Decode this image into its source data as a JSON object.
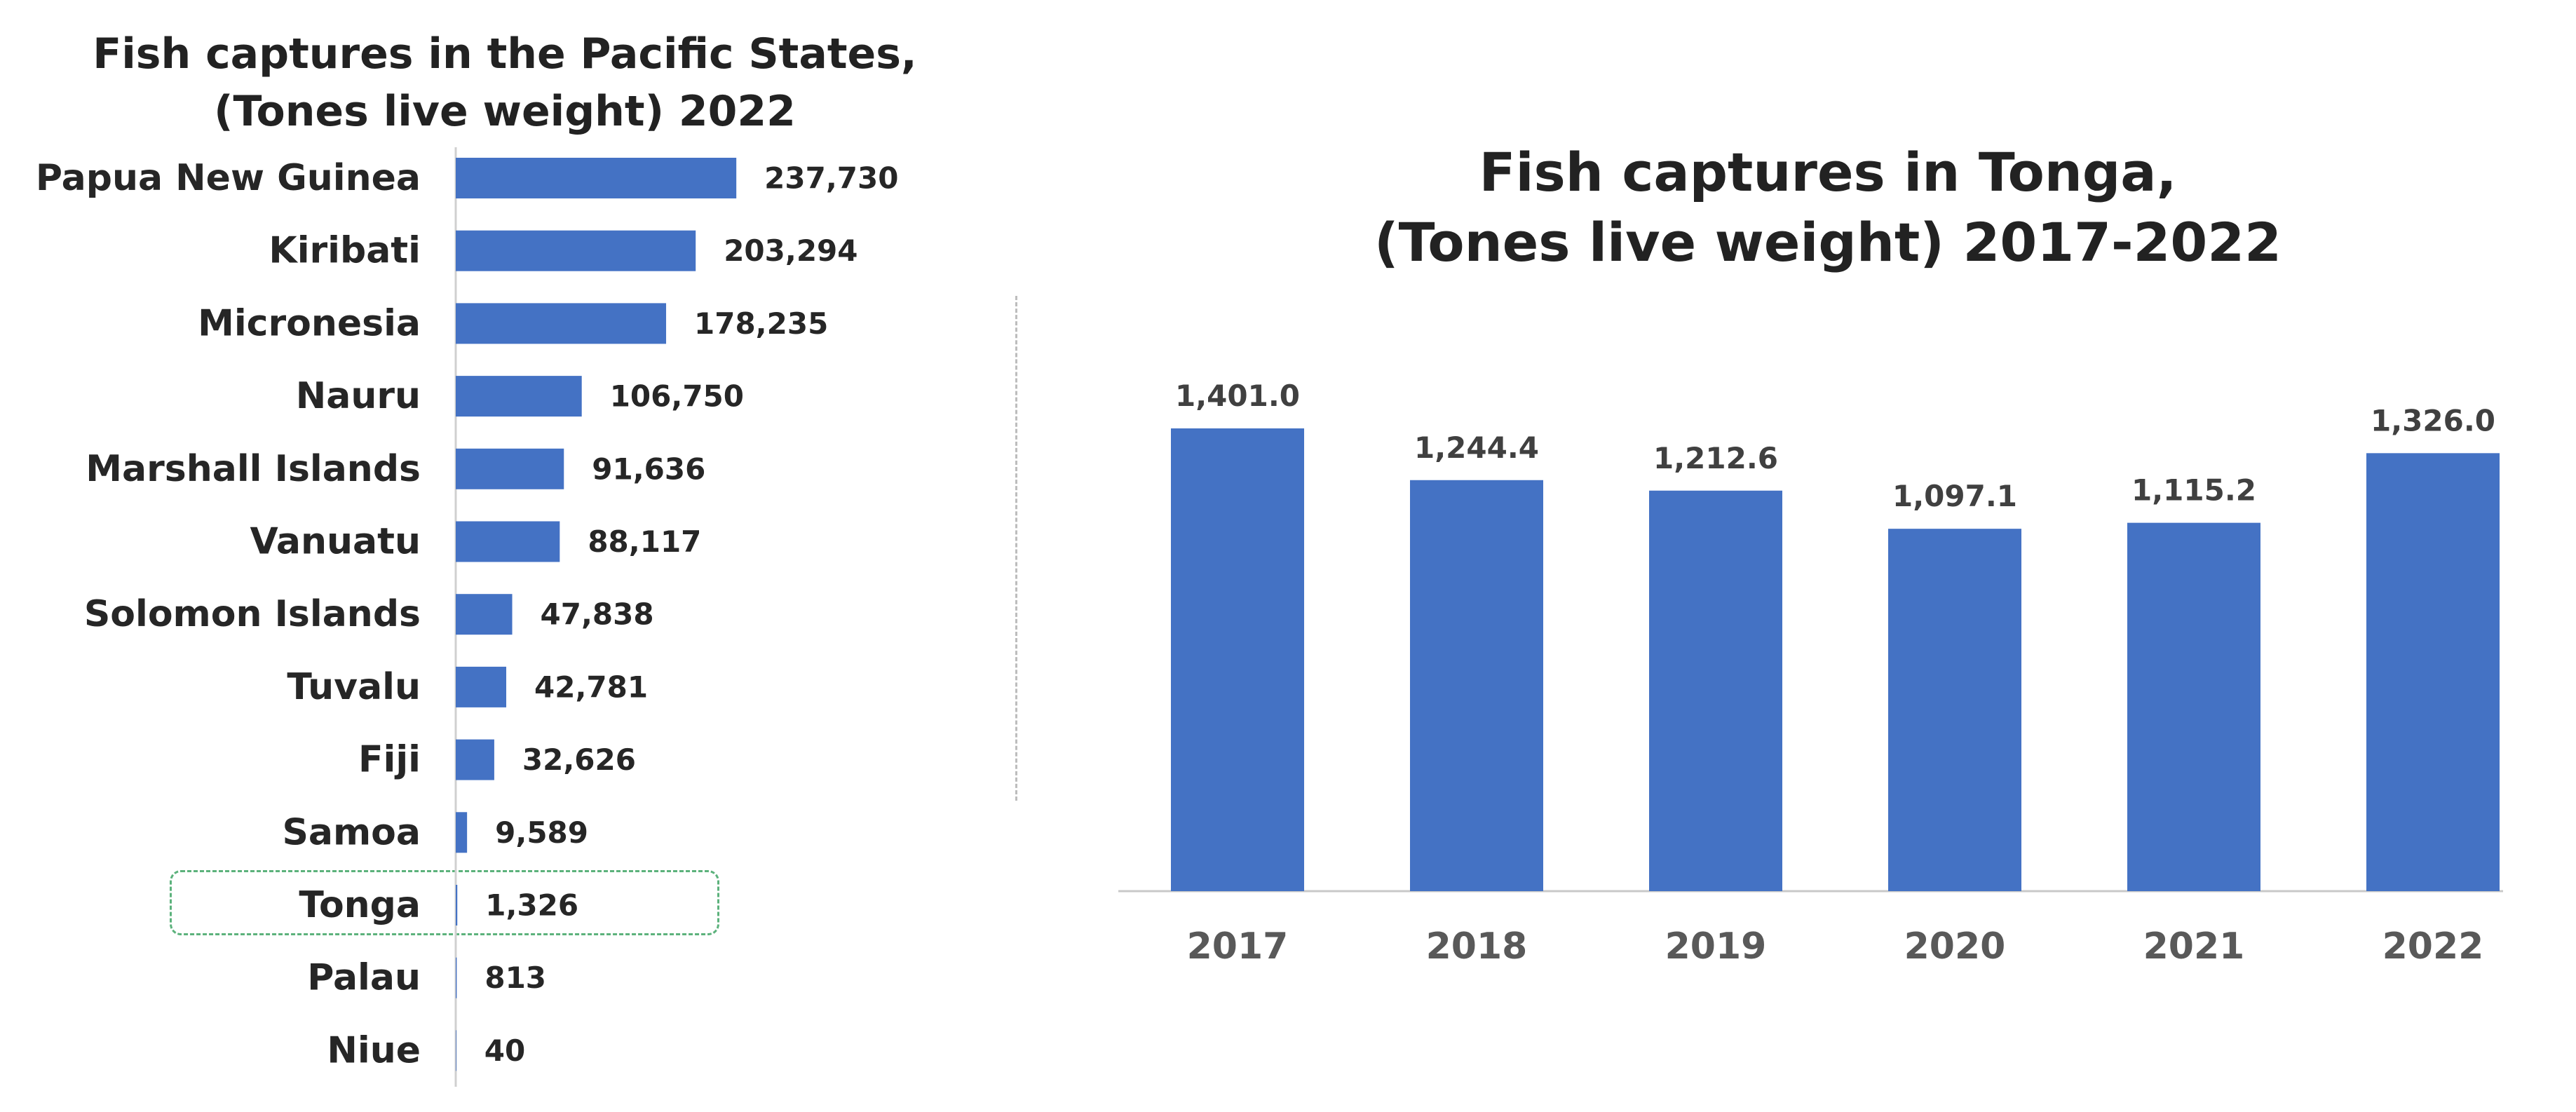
{
  "chart_data": [
    {
      "type": "bar",
      "orientation": "horizontal",
      "title": "Fish captures in the Pacific States,\n(Tones live weight) 2022",
      "title_lines": [
        "Fish captures in the Pacific States,",
        "(Tones live weight) 2022"
      ],
      "categories": [
        "Papua New Guinea",
        "Kiribati",
        "Micronesia",
        "Nauru",
        "Marshall Islands",
        "Vanuatu",
        "Solomon Islands",
        "Tuvalu",
        "Fiji",
        "Samoa",
        "Tonga",
        "Palau",
        "Niue"
      ],
      "values": [
        237730,
        203294,
        178235,
        106750,
        91636,
        88117,
        47838,
        42781,
        32626,
        9589,
        1326,
        813,
        40
      ],
      "data_labels": [
        "237,730",
        "203,294",
        "178,235",
        "106,750",
        "91,636",
        "88,117",
        "47,838",
        "42,781",
        "32,626",
        "9,589",
        "1,326",
        "813",
        "40"
      ],
      "highlighted_category": "Tonga",
      "xlim": [
        0,
        240000
      ],
      "grid": false,
      "legend": "none",
      "bar_color": "#4472c4",
      "highlight_color": "#5cb27c"
    },
    {
      "type": "bar",
      "orientation": "vertical",
      "title": "Fish captures in Tonga,\n(Tones live weight) 2017-2022",
      "title_lines": [
        "Fish captures in Tonga,",
        "(Tones live weight) 2017-2022"
      ],
      "categories": [
        "2017",
        "2018",
        "2019",
        "2020",
        "2021",
        "2022"
      ],
      "values": [
        1401.0,
        1244.4,
        1212.6,
        1097.1,
        1115.2,
        1326.0
      ],
      "data_labels": [
        "1,401.0",
        "1,244.4",
        "1,212.6",
        "1,097.1",
        "1,115.2",
        "1,326.0"
      ],
      "ylim": [
        0,
        1401
      ],
      "grid": false,
      "legend": "none",
      "bar_color": "#4472c4"
    }
  ]
}
